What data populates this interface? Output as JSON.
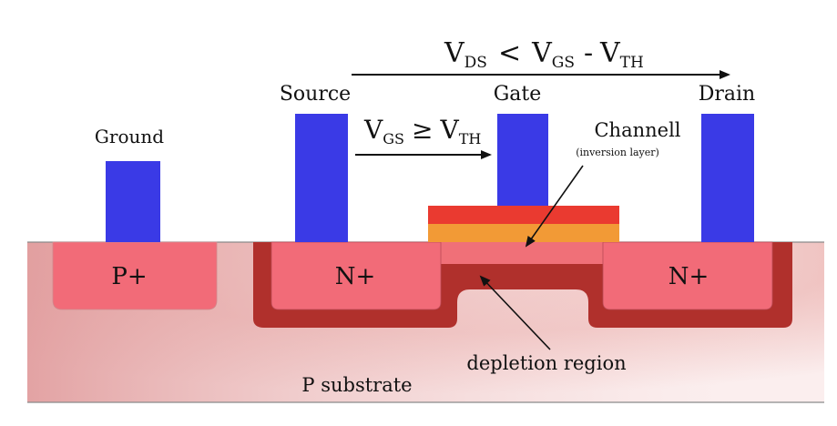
{
  "diagram": {
    "title": {
      "v1": "V",
      "v1_sub": "DS",
      "op": "<",
      "v2": "V",
      "v2_sub": "GS",
      "minus": "-",
      "v3": "V",
      "v3_sub": "TH"
    },
    "condition": {
      "v1": "V",
      "v1_sub": "GS",
      "op": "≥",
      "v2": "V",
      "v2_sub": "TH"
    },
    "terminals": {
      "ground": "Ground",
      "source": "Source",
      "gate": "Gate",
      "drain": "Drain"
    },
    "regions": {
      "p_plus": "P+",
      "n_plus_source": "N+",
      "n_plus_drain": "N+",
      "substrate": "P substrate"
    },
    "annotations": {
      "channel": "Channell",
      "channel_note": "(inversion layer)",
      "depletion": "depletion region"
    },
    "colors": {
      "contact_metal": "#3a3ae6",
      "n_plus": "#f26b78",
      "p_plus": "#f26b78",
      "depletion": "#b0302c",
      "channel": "#f07078",
      "gate_top": "#ea3a30",
      "gate_oxide": "#f29a36",
      "substrate_edge": "#e0999a"
    }
  }
}
